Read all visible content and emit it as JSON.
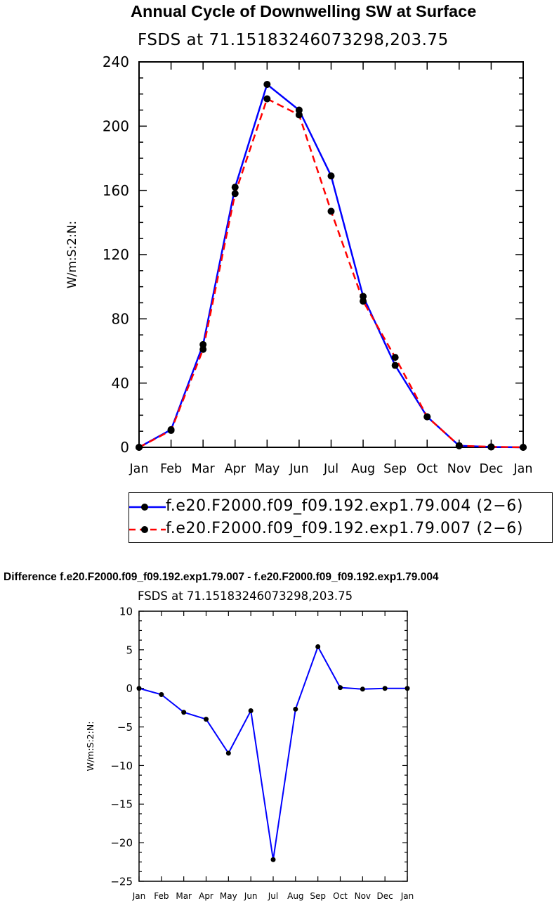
{
  "chart_data": [
    {
      "type": "line",
      "title": "Annual Cycle of Downwelling SW at Surface",
      "subtitle": "FSDS at 71.15183246073298,203.75",
      "xlabel": "",
      "ylabel": "W/m:S:2:N:",
      "categories": [
        "Jan",
        "Feb",
        "Mar",
        "Apr",
        "May",
        "Jun",
        "Jul",
        "Aug",
        "Sep",
        "Oct",
        "Nov",
        "Dec",
        "Jan"
      ],
      "ylim": [
        0,
        240
      ],
      "yticks": [
        0,
        40,
        80,
        120,
        160,
        200,
        240
      ],
      "legend_position": "bottom",
      "series": [
        {
          "name": "f.e20.F2000.f09_f09.192.exp1.79.004 (2−6)",
          "color": "#0000ff",
          "dash": "solid",
          "values": [
            0,
            11,
            64,
            162,
            226,
            210,
            169,
            94,
            51,
            19,
            1,
            0.2,
            0
          ]
        },
        {
          "name": "f.e20.F2000.f09_f09.192.exp1.79.007 (2−6)",
          "color": "#ff0000",
          "dash": "dashed",
          "values": [
            0,
            10.5,
            61,
            158,
            217,
            207,
            147,
            91,
            56,
            19,
            1,
            0.3,
            0
          ]
        }
      ]
    },
    {
      "type": "line",
      "title": "Difference f.e20.F2000.f09_f09.192.exp1.79.007 - f.e20.F2000.f09_f09.192.exp1.79.004",
      "subtitle": "FSDS at 71.15183246073298,203.75",
      "xlabel": "",
      "ylabel": "W/m:S:2:N:",
      "categories": [
        "Jan",
        "Feb",
        "Mar",
        "Apr",
        "May",
        "Jun",
        "Jul",
        "Aug",
        "Sep",
        "Oct",
        "Nov",
        "Dec",
        "Jan"
      ],
      "ylim": [
        -25,
        10
      ],
      "yticks": [
        10,
        5,
        0,
        -5,
        -10,
        -15,
        -20,
        -25
      ],
      "series": [
        {
          "color": "#0000ff",
          "dash": "solid",
          "values": [
            0,
            -0.8,
            -3.1,
            -4.0,
            -8.4,
            -2.9,
            -22.2,
            -2.7,
            5.4,
            0.1,
            -0.1,
            0,
            0
          ]
        }
      ]
    }
  ]
}
